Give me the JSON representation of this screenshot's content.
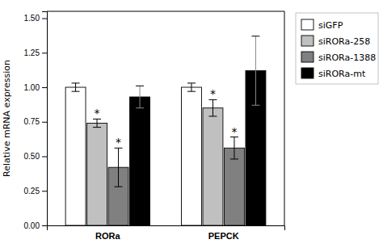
{
  "chart_data": {
    "type": "bar",
    "categories": [
      "RORa",
      "PEPCK"
    ],
    "series": [
      {
        "name": "siGFP",
        "color": "white",
        "values": [
          1.0,
          1.0
        ],
        "errors": [
          0.03,
          0.03
        ],
        "annotations": [
          null,
          null
        ]
      },
      {
        "name": "siRORa-258",
        "color": "#c0c0c0",
        "values": [
          0.74,
          0.85
        ],
        "errors": [
          0.03,
          0.06
        ],
        "annotations": [
          "*",
          "*"
        ]
      },
      {
        "name": "siRORa-1388",
        "color": "#808080",
        "values": [
          0.42,
          0.56
        ],
        "errors": [
          0.14,
          0.08
        ],
        "annotations": [
          "*",
          "*"
        ]
      },
      {
        "name": "siRORa-mt",
        "color": "black",
        "values": [
          0.93,
          1.12
        ],
        "errors": [
          0.08,
          0.25
        ],
        "annotations": [
          null,
          null
        ]
      }
    ],
    "ylabel": "Relative mRNA expression",
    "ylim": [
      0.0,
      1.55
    ],
    "yticks": [
      {
        "value": 0.0,
        "label": "0.00"
      },
      {
        "value": 0.25,
        "label": "0.25"
      },
      {
        "value": 0.5,
        "label": "0.50"
      },
      {
        "value": 0.75,
        "label": "0.75"
      },
      {
        "value": 1.0,
        "label": "1.00"
      },
      {
        "value": 1.25,
        "label": "1.25"
      },
      {
        "value": 1.5,
        "label": "1.50"
      }
    ],
    "grid": false,
    "legend": "right"
  }
}
